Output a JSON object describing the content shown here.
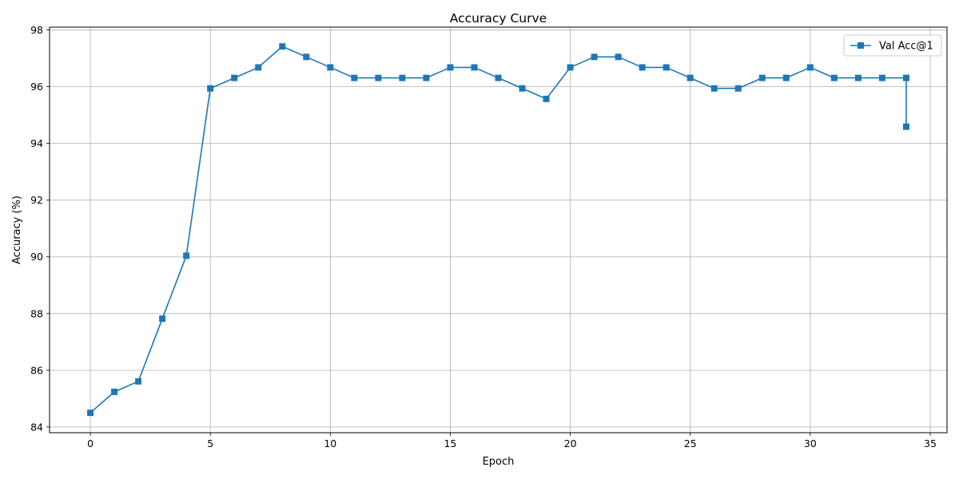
{
  "chart_data": {
    "type": "line",
    "title": "Accuracy Curve",
    "xlabel": "Epoch",
    "ylabel": "Accuracy (%)",
    "xlim": [
      -1.7,
      35.7
    ],
    "ylim": [
      83.8,
      98.1
    ],
    "xticks": [
      0,
      5,
      10,
      15,
      20,
      25,
      30,
      35
    ],
    "yticks": [
      84,
      86,
      88,
      90,
      92,
      94,
      96,
      98
    ],
    "grid": true,
    "legend_position": "top-right",
    "series": [
      {
        "name": "Val Acc@1",
        "color": "#1f77b4",
        "marker": "square",
        "x": [
          0,
          1,
          2,
          3,
          4,
          5,
          6,
          7,
          8,
          9,
          10,
          11,
          12,
          13,
          14,
          15,
          16,
          17,
          18,
          19,
          20,
          21,
          22,
          23,
          24,
          25,
          26,
          27,
          28,
          29,
          30,
          31,
          32,
          33,
          34,
          34
        ],
        "y": [
          84.5,
          85.24,
          85.61,
          87.82,
          90.04,
          95.94,
          96.31,
          96.68,
          97.42,
          97.05,
          96.68,
          96.31,
          96.31,
          96.31,
          96.31,
          96.68,
          96.68,
          96.31,
          95.94,
          95.57,
          96.68,
          97.05,
          97.05,
          96.68,
          96.68,
          96.31,
          95.94,
          95.94,
          96.31,
          96.31,
          96.68,
          96.31,
          96.31,
          96.31,
          96.31,
          94.59
        ]
      }
    ]
  }
}
